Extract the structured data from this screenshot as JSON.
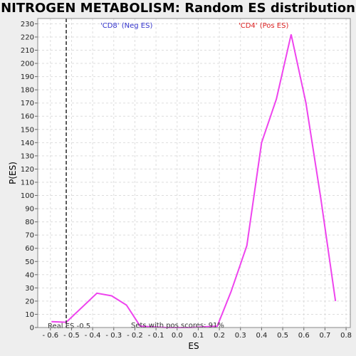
{
  "chart_data": {
    "type": "line",
    "title": "NITROGEN METABOLISM: Random ES distribution",
    "xlabel": "ES",
    "ylabel": "P(ES)",
    "xlim": [
      -0.66,
      0.82
    ],
    "ylim": [
      0,
      234
    ],
    "x_ticks": [
      -0.6,
      -0.5,
      -0.4,
      -0.3,
      -0.2,
      -0.1,
      0.0,
      0.1,
      0.2,
      0.3,
      0.4,
      0.5,
      0.6,
      0.7,
      0.8
    ],
    "x_tick_labels": [
      "- 0.6",
      "- 0.5",
      "- 0.4",
      "- 0.3",
      "- 0.2",
      "- 0.1",
      "0.0",
      "0.1",
      "0.2",
      "0.3",
      "0.4",
      "0.5",
      "0.6",
      "0.7",
      "0.8"
    ],
    "y_ticks": [
      0,
      10,
      20,
      30,
      40,
      50,
      60,
      70,
      80,
      90,
      100,
      110,
      120,
      130,
      140,
      150,
      160,
      170,
      180,
      190,
      200,
      210,
      220,
      230
    ],
    "grid": true,
    "series": [
      {
        "color": "#ee44ee",
        "x": [
          -0.595,
          -0.525,
          -0.38,
          -0.31,
          -0.24,
          -0.175,
          -0.05,
          0.0,
          0.06,
          0.19,
          0.255,
          0.33,
          0.4,
          0.47,
          0.54,
          0.61,
          0.68,
          0.75
        ],
        "y": [
          4.5,
          4,
          26,
          24,
          17,
          1,
          0,
          0,
          0,
          1,
          27,
          62,
          140,
          173,
          222,
          170,
          98,
          20
        ]
      }
    ],
    "marker_line": {
      "x": -0.525,
      "style": "dashed",
      "color": "#333333"
    },
    "annotations": {
      "neg_label": {
        "text": "'CD8' (Neg ES)",
        "color": "#3333cc"
      },
      "pos_label": {
        "text": "'CD4' (Pos ES)",
        "color": "#dd2222"
      },
      "real_es": {
        "text": "Real ES -0.5"
      },
      "pos_sets": {
        "text": "Sets with pos scores: 91%"
      }
    }
  }
}
